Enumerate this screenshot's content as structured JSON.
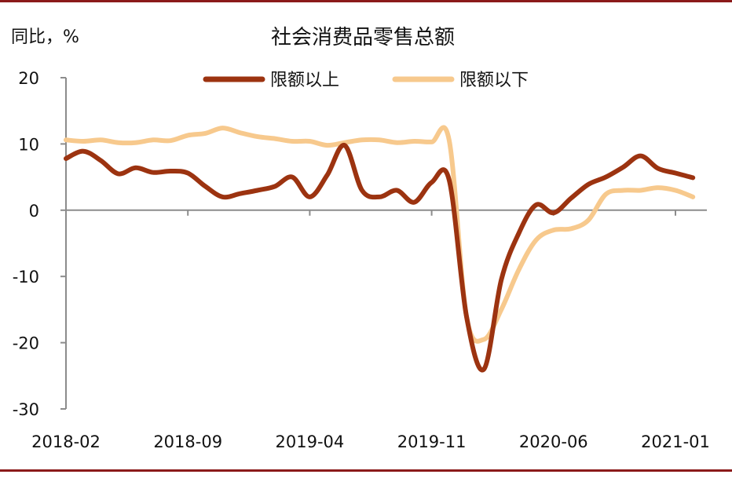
{
  "chart_data": {
    "type": "line",
    "title": "社会消费品零售总额",
    "ylabel": "同比，%",
    "xlabel": "",
    "ylim": [
      -30,
      20
    ],
    "yticks": [
      20,
      10,
      0,
      -10,
      -20,
      -30
    ],
    "x_tick_labels": [
      "2018-02",
      "2018-09",
      "2019-04",
      "2019-11",
      "2020-06",
      "2021-01"
    ],
    "x": [
      "2018-02",
      "2018-03",
      "2018-04",
      "2018-05",
      "2018-06",
      "2018-07",
      "2018-08",
      "2018-09",
      "2018-10",
      "2018-11",
      "2018-12",
      "2019-01",
      "2019-02",
      "2019-03",
      "2019-04",
      "2019-05",
      "2019-06",
      "2019-07",
      "2019-08",
      "2019-09",
      "2019-10",
      "2019-11",
      "2019-12",
      "2020-01",
      "2020-02",
      "2020-03",
      "2020-04",
      "2020-05",
      "2020-06",
      "2020-07",
      "2020-08",
      "2020-09",
      "2020-10",
      "2020-11",
      "2020-12",
      "2021-01",
      "2021-02"
    ],
    "legend_position": "top",
    "grid": false,
    "series": [
      {
        "name": "限额以上",
        "color": "#9c3310",
        "values": [
          7.8,
          8.9,
          7.5,
          5.5,
          6.4,
          5.7,
          5.9,
          5.6,
          3.6,
          2.0,
          2.5,
          3.0,
          3.6,
          5.0,
          2.0,
          5.3,
          9.8,
          3.0,
          2.0,
          3.0,
          1.2,
          4.2,
          4.6,
          -16.0,
          -24.0,
          -10.5,
          -3.5,
          0.8,
          -0.4,
          1.8,
          3.9,
          5.0,
          6.5,
          8.2,
          6.3,
          5.6,
          4.9
        ]
      },
      {
        "name": "限额以下",
        "color": "#f7c98d",
        "values": [
          10.6,
          10.4,
          10.6,
          10.2,
          10.2,
          10.6,
          10.5,
          11.3,
          11.6,
          12.4,
          11.7,
          11.1,
          10.8,
          10.4,
          10.4,
          9.8,
          10.2,
          10.6,
          10.6,
          10.2,
          10.4,
          10.3,
          10.6,
          -16.0,
          -19.5,
          -15.0,
          -9.0,
          -4.5,
          -3.0,
          -2.8,
          -1.5,
          2.4,
          3.0,
          3.0,
          3.4,
          3.0,
          2.0
        ]
      }
    ]
  }
}
